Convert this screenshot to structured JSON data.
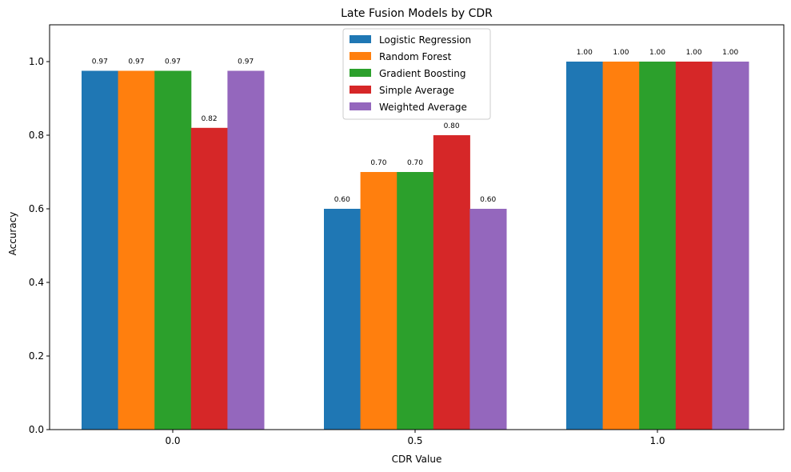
{
  "chart_data": {
    "type": "bar",
    "title": "Late Fusion Models by CDR",
    "xlabel": "CDR Value",
    "ylabel": "Accuracy",
    "categories": [
      "0.0",
      "0.5",
      "1.0"
    ],
    "ylim": [
      0,
      1.1
    ],
    "yticks": [
      0.0,
      0.2,
      0.4,
      0.6,
      0.8,
      1.0
    ],
    "ytick_labels": [
      "0.0",
      "0.2",
      "0.4",
      "0.6",
      "0.8",
      "1.0"
    ],
    "legend_position": "top-center",
    "series": [
      {
        "name": "Logistic Regression",
        "color": "#1f77b4",
        "values": [
          0.975,
          0.6,
          1.0
        ],
        "labels": [
          "0.97",
          "0.60",
          "1.00"
        ]
      },
      {
        "name": "Random Forest",
        "color": "#ff7f0e",
        "values": [
          0.975,
          0.7,
          1.0
        ],
        "labels": [
          "0.97",
          "0.70",
          "1.00"
        ]
      },
      {
        "name": "Gradient Boosting",
        "color": "#2ca02c",
        "values": [
          0.975,
          0.7,
          1.0
        ],
        "labels": [
          "0.97",
          "0.70",
          "1.00"
        ]
      },
      {
        "name": "Simple Average",
        "color": "#d62728",
        "values": [
          0.82,
          0.8,
          1.0
        ],
        "labels": [
          "0.82",
          "0.80",
          "1.00"
        ]
      },
      {
        "name": "Weighted Average",
        "color": "#9467bd",
        "values": [
          0.975,
          0.6,
          1.0
        ],
        "labels": [
          "0.97",
          "0.60",
          "1.00"
        ]
      }
    ]
  }
}
